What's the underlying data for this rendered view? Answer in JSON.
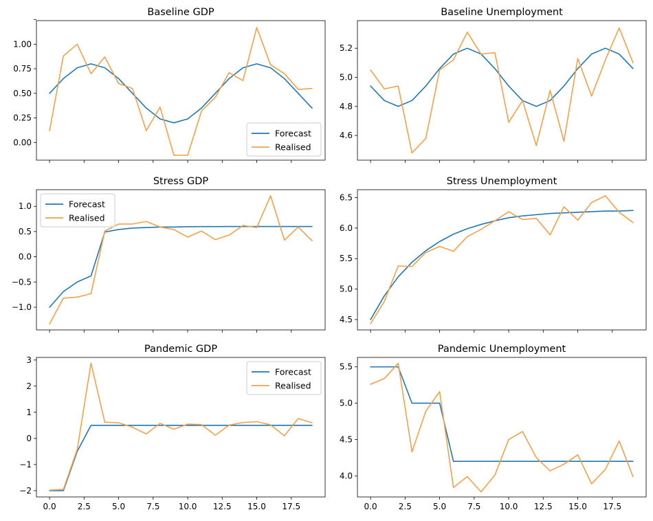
{
  "colors": {
    "forecast": "#1f77b4",
    "realised": "#f5a04a"
  },
  "chart_data": [
    {
      "type": "line",
      "title": "Baseline GDP",
      "xlabel": "",
      "ylabel": "",
      "xlim": [
        -0.95,
        19.95
      ],
      "ylim": [
        -0.18,
        1.24
      ],
      "yticks": [
        0.0,
        0.25,
        0.5,
        0.75,
        1.0,
        1.25
      ],
      "ytick_labels": [
        "0.00",
        "0.25",
        "0.50",
        "0.75",
        "1.00",
        ""
      ],
      "xticks": [
        0,
        2.5,
        5,
        7.5,
        10,
        12.5,
        15,
        17.5
      ],
      "xtick_labels": [
        "",
        "",
        "",
        "",
        "",
        "",
        "",
        ""
      ],
      "grid": false,
      "legend": "lower-right",
      "x": [
        0,
        1,
        2,
        3,
        4,
        5,
        6,
        7,
        8,
        9,
        10,
        11,
        12,
        13,
        14,
        15,
        16,
        17,
        18,
        19
      ],
      "series": [
        {
          "name": "Forecast",
          "values": [
            0.5,
            0.65,
            0.76,
            0.8,
            0.76,
            0.65,
            0.5,
            0.35,
            0.24,
            0.2,
            0.24,
            0.35,
            0.5,
            0.65,
            0.76,
            0.8,
            0.76,
            0.65,
            0.5,
            0.35
          ]
        },
        {
          "name": "Realised",
          "values": [
            0.12,
            0.88,
            1.0,
            0.7,
            0.87,
            0.6,
            0.55,
            0.12,
            0.36,
            -0.13,
            -0.13,
            0.32,
            0.46,
            0.71,
            0.63,
            1.17,
            0.79,
            0.7,
            0.54,
            0.55
          ]
        }
      ]
    },
    {
      "type": "line",
      "title": "Baseline Unemployment",
      "xlabel": "",
      "ylabel": "",
      "xlim": [
        -0.95,
        19.95
      ],
      "ylim": [
        4.43,
        5.39
      ],
      "yticks": [
        4.6,
        4.8,
        5.0,
        5.2
      ],
      "ytick_labels": [
        "4.6",
        "4.8",
        "5.0",
        "5.2"
      ],
      "xticks": [
        0,
        2.5,
        5,
        7.5,
        10,
        12.5,
        15,
        17.5
      ],
      "xtick_labels": [
        "",
        "",
        "",
        "",
        "",
        "",
        "",
        ""
      ],
      "grid": false,
      "legend": "none",
      "x": [
        0,
        1,
        2,
        3,
        4,
        5,
        6,
        7,
        8,
        9,
        10,
        11,
        12,
        13,
        14,
        15,
        16,
        17,
        18,
        19
      ],
      "series": [
        {
          "name": "Forecast",
          "values": [
            4.94,
            4.84,
            4.8,
            4.84,
            4.94,
            5.06,
            5.16,
            5.2,
            5.16,
            5.06,
            4.94,
            4.84,
            4.8,
            4.84,
            4.94,
            5.06,
            5.16,
            5.2,
            5.16,
            5.06
          ]
        },
        {
          "name": "Realised",
          "values": [
            5.05,
            4.92,
            4.94,
            4.48,
            4.58,
            5.05,
            5.12,
            5.31,
            5.16,
            5.17,
            4.69,
            4.84,
            4.53,
            4.91,
            4.56,
            5.13,
            4.87,
            5.12,
            5.34,
            5.1
          ]
        }
      ]
    },
    {
      "type": "line",
      "title": "Stress GDP",
      "xlabel": "",
      "ylabel": "",
      "xlim": [
        -0.95,
        19.95
      ],
      "ylim": [
        -1.45,
        1.33
      ],
      "yticks": [
        -1.0,
        -0.5,
        0.0,
        0.5,
        1.0
      ],
      "ytick_labels": [
        "−1.0",
        "−0.5",
        "0.0",
        "0.5",
        "1.0"
      ],
      "xticks": [
        0,
        2.5,
        5,
        7.5,
        10,
        12.5,
        15,
        17.5
      ],
      "xtick_labels": [
        "",
        "",
        "",
        "",
        "",
        "",
        "",
        ""
      ],
      "grid": false,
      "legend": "upper-left",
      "x": [
        0,
        1,
        2,
        3,
        4,
        5,
        6,
        7,
        8,
        9,
        10,
        11,
        12,
        13,
        14,
        15,
        16,
        17,
        18,
        19
      ],
      "series": [
        {
          "name": "Forecast",
          "values": [
            -1.0,
            -0.69,
            -0.5,
            -0.38,
            0.49,
            0.54,
            0.57,
            0.58,
            0.59,
            0.59,
            0.596,
            0.598,
            0.599,
            0.6,
            0.6,
            0.6,
            0.6,
            0.6,
            0.6,
            0.6
          ]
        },
        {
          "name": "Realised",
          "values": [
            -1.33,
            -0.82,
            -0.8,
            -0.73,
            0.51,
            0.65,
            0.65,
            0.7,
            0.59,
            0.54,
            0.39,
            0.51,
            0.34,
            0.43,
            0.62,
            0.58,
            1.21,
            0.33,
            0.59,
            0.32
          ]
        }
      ]
    },
    {
      "type": "line",
      "title": "Stress Unemployment",
      "xlabel": "",
      "ylabel": "",
      "xlim": [
        -0.95,
        19.95
      ],
      "ylim": [
        4.33,
        6.63
      ],
      "yticks": [
        4.5,
        5.0,
        5.5,
        6.0,
        6.5
      ],
      "ytick_labels": [
        "4.5",
        "5.0",
        "5.5",
        "6.0",
        "6.5"
      ],
      "xticks": [
        0,
        2.5,
        5,
        7.5,
        10,
        12.5,
        15,
        17.5
      ],
      "xtick_labels": [
        "",
        "",
        "",
        "",
        "",
        "",
        "",
        ""
      ],
      "grid": false,
      "legend": "none",
      "x": [
        0,
        1,
        2,
        3,
        4,
        5,
        6,
        7,
        8,
        9,
        10,
        11,
        12,
        13,
        14,
        15,
        16,
        17,
        18,
        19
      ],
      "series": [
        {
          "name": "Forecast",
          "values": [
            4.5,
            4.89,
            5.2,
            5.44,
            5.63,
            5.78,
            5.9,
            5.99,
            6.06,
            6.12,
            6.17,
            6.2,
            6.22,
            6.24,
            6.25,
            6.26,
            6.27,
            6.28,
            6.28,
            6.29
          ]
        },
        {
          "name": "Realised",
          "values": [
            4.43,
            4.8,
            5.38,
            5.37,
            5.6,
            5.7,
            5.62,
            5.86,
            5.98,
            6.12,
            6.27,
            6.14,
            6.16,
            5.89,
            6.35,
            6.13,
            6.42,
            6.53,
            6.26,
            6.09
          ]
        }
      ]
    },
    {
      "type": "line",
      "title": "Pandemic GDP",
      "xlabel": "",
      "ylabel": "",
      "xlim": [
        -0.95,
        19.95
      ],
      "ylim": [
        -2.24,
        3.1
      ],
      "yticks": [
        -2,
        -1,
        0,
        1,
        2,
        3
      ],
      "ytick_labels": [
        "−2",
        "−1",
        "0",
        "1",
        "2",
        "3"
      ],
      "xticks": [
        0,
        2.5,
        5,
        7.5,
        10,
        12.5,
        15,
        17.5
      ],
      "xtick_labels": [
        "0.0",
        "2.5",
        "5.0",
        "7.5",
        "10.0",
        "12.5",
        "15.0",
        "17.5"
      ],
      "grid": false,
      "legend": "upper-right",
      "x": [
        0,
        1,
        2,
        3,
        4,
        5,
        6,
        7,
        8,
        9,
        10,
        11,
        12,
        13,
        14,
        15,
        16,
        17,
        18,
        19
      ],
      "series": [
        {
          "name": "Forecast",
          "values": [
            -2.0,
            -2.0,
            -0.5,
            0.5,
            0.5,
            0.5,
            0.5,
            0.5,
            0.5,
            0.5,
            0.5,
            0.5,
            0.5,
            0.5,
            0.5,
            0.5,
            0.5,
            0.5,
            0.5,
            0.5
          ]
        },
        {
          "name": "Realised",
          "values": [
            -1.98,
            -1.95,
            -0.43,
            2.88,
            0.62,
            0.6,
            0.43,
            0.17,
            0.58,
            0.35,
            0.55,
            0.53,
            0.12,
            0.51,
            0.61,
            0.64,
            0.52,
            0.1,
            0.76,
            0.6
          ]
        }
      ]
    },
    {
      "type": "line",
      "title": "Pandemic Unemployment",
      "xlabel": "",
      "ylabel": "",
      "xlim": [
        -0.95,
        19.95
      ],
      "ylim": [
        3.71,
        5.63
      ],
      "yticks": [
        4.0,
        4.5,
        5.0,
        5.5
      ],
      "ytick_labels": [
        "4.0",
        "4.5",
        "5.0",
        "5.5"
      ],
      "xticks": [
        0,
        2.5,
        5,
        7.5,
        10,
        12.5,
        15,
        17.5
      ],
      "xtick_labels": [
        "0.0",
        "2.5",
        "5.0",
        "7.5",
        "10.0",
        "12.5",
        "15.0",
        "17.5"
      ],
      "grid": false,
      "legend": "none",
      "x": [
        0,
        1,
        2,
        3,
        4,
        5,
        6,
        7,
        8,
        9,
        10,
        11,
        12,
        13,
        14,
        15,
        16,
        17,
        18,
        19
      ],
      "series": [
        {
          "name": "Forecast",
          "values": [
            5.5,
            5.5,
            5.5,
            5.0,
            5.0,
            5.0,
            4.2,
            4.2,
            4.2,
            4.2,
            4.2,
            4.2,
            4.2,
            4.2,
            4.2,
            4.2,
            4.2,
            4.2,
            4.2,
            4.2
          ]
        },
        {
          "name": "Realised",
          "values": [
            5.26,
            5.34,
            5.55,
            4.33,
            4.89,
            5.16,
            3.84,
            3.99,
            3.78,
            4.01,
            4.5,
            4.61,
            4.25,
            4.07,
            4.16,
            4.29,
            3.89,
            4.09,
            4.48,
            3.99
          ]
        }
      ]
    }
  ]
}
